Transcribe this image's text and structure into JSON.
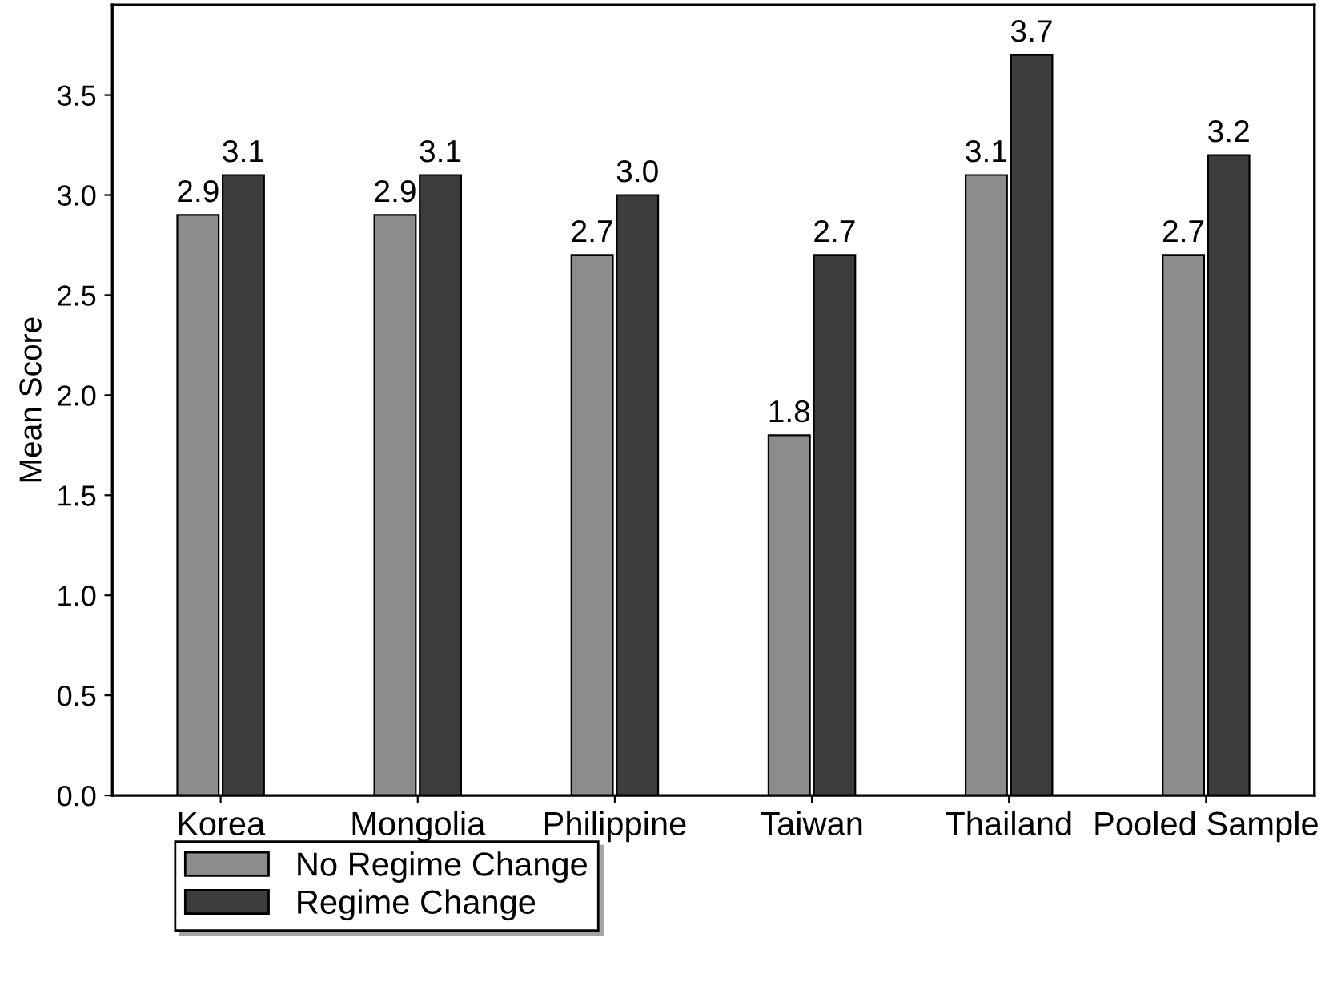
{
  "chart_data": {
    "type": "bar",
    "ylabel": "Mean Score",
    "categories": [
      "Korea",
      "Mongolia",
      "Philippine",
      "Taiwan",
      "Thailand",
      "Pooled Sample"
    ],
    "series": [
      {
        "name": "No Regime Change",
        "color": "#8c8c8c",
        "values": [
          2.9,
          2.9,
          2.7,
          1.8,
          3.1,
          2.7
        ],
        "value_labels": [
          "2.9",
          "2.9",
          "2.7",
          "1.8",
          "3.1",
          "2.7"
        ]
      },
      {
        "name": "Regime Change",
        "color": "#3c3c3c",
        "values": [
          3.1,
          3.1,
          3.0,
          2.7,
          3.7,
          3.2
        ],
        "value_labels": [
          "3.1",
          "3.1",
          "3.0",
          "2.7",
          "3.7",
          "3.2"
        ]
      }
    ],
    "ylim": [
      0,
      3.95
    ],
    "yticks": [
      {
        "value": 0,
        "label": "0.0"
      },
      0.5,
      {
        "value": 1,
        "label": "1.0"
      },
      1.5,
      {
        "value": 2,
        "label": "2.0"
      },
      2.5,
      {
        "value": 3,
        "label": "3.0"
      },
      3.5
    ],
    "grid": false,
    "legend": "bottom left"
  }
}
